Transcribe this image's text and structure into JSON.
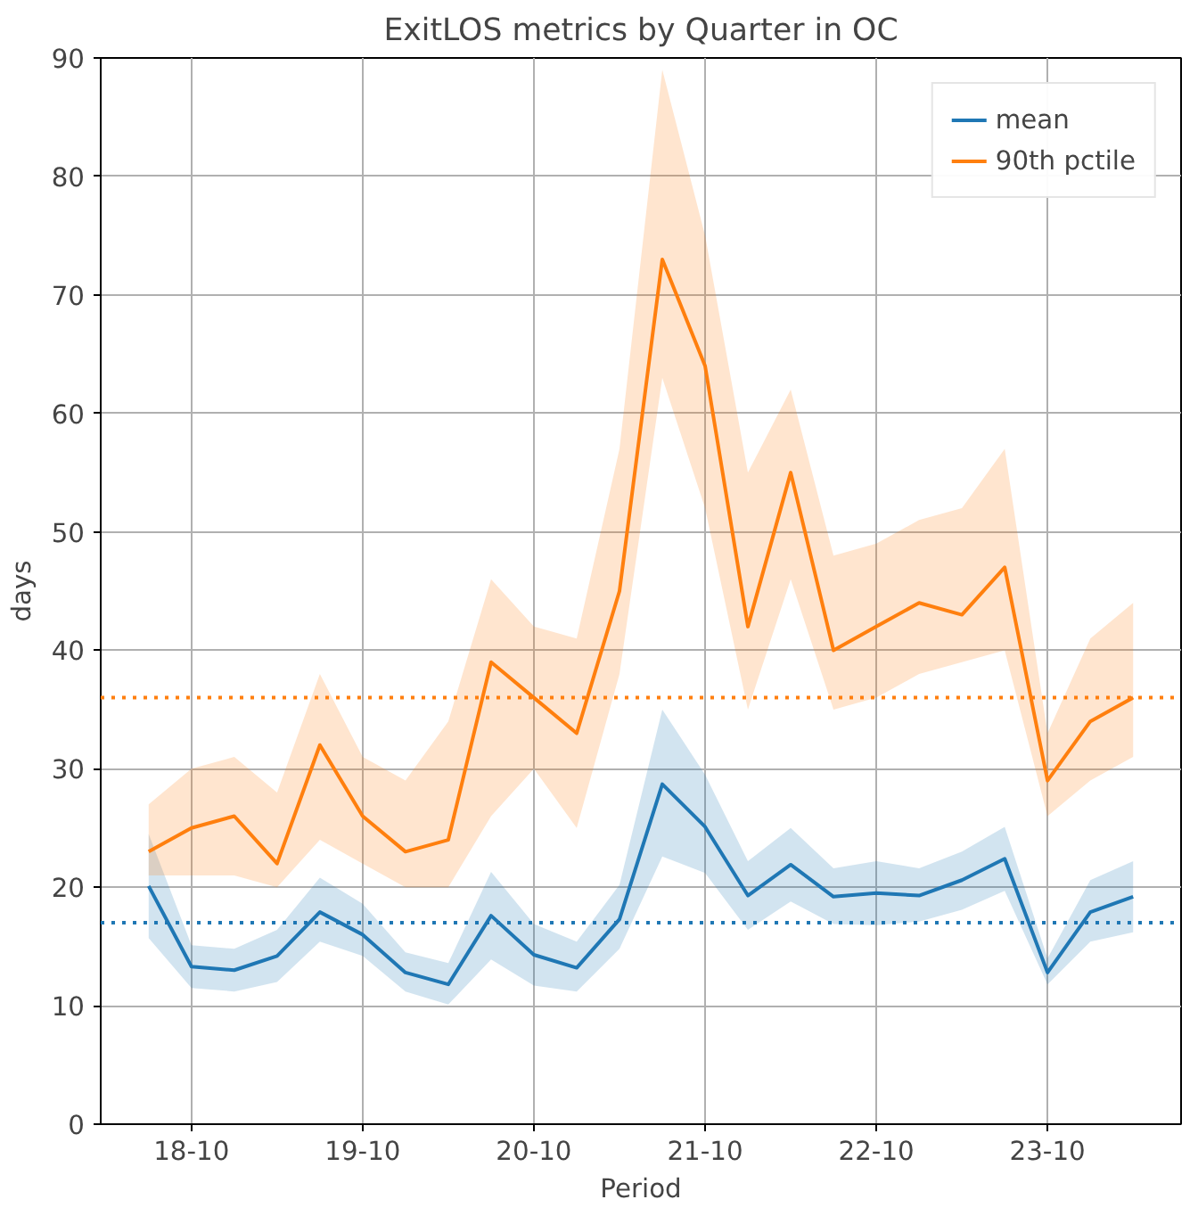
{
  "chart_data": {
    "type": "line",
    "title": "ExitLOS metrics by Quarter in OC",
    "xlabel": "Period",
    "ylabel": "days",
    "categories": [
      null,
      "18-10",
      null,
      null,
      null,
      "19-10",
      null,
      null,
      null,
      "20-10",
      null,
      null,
      null,
      "21-10",
      null,
      null,
      null,
      "22-10",
      null,
      null,
      null,
      "23-10",
      null,
      null
    ],
    "series": [
      {
        "name": "mean",
        "color": "#1f77b4",
        "values": [
          20.1,
          13.3,
          13.0,
          14.2,
          17.9,
          16.0,
          12.8,
          11.8,
          17.6,
          14.3,
          13.2,
          17.3,
          28.7,
          25.1,
          19.3,
          21.9,
          19.2,
          19.5,
          19.3,
          20.6,
          22.4,
          12.8,
          17.9,
          19.2
        ],
        "lower": [
          15.7,
          11.5,
          11.2,
          12.0,
          15.4,
          14.2,
          11.2,
          10.1,
          13.9,
          11.7,
          11.2,
          14.8,
          22.6,
          21.2,
          16.4,
          18.8,
          16.9,
          16.8,
          17.1,
          18.1,
          19.7,
          11.8,
          15.4,
          16.2
        ],
        "upper": [
          24.5,
          15.1,
          14.8,
          16.4,
          20.8,
          18.6,
          14.5,
          13.6,
          21.3,
          16.9,
          15.4,
          20.2,
          35.0,
          29.5,
          22.2,
          25.0,
          21.6,
          22.2,
          21.6,
          23.0,
          25.1,
          14.0,
          20.6,
          22.2
        ]
      },
      {
        "name": "90th pctile",
        "color": "#ff7f0e",
        "values": [
          23,
          25,
          26,
          22,
          32,
          26,
          23,
          24,
          39,
          36,
          33,
          45,
          73,
          64,
          42,
          55,
          40,
          42,
          44,
          43,
          47,
          29,
          34,
          36
        ],
        "lower": [
          21,
          21,
          21,
          20,
          24,
          22,
          20,
          20,
          26,
          30,
          25,
          38,
          63,
          52,
          35,
          46,
          35,
          36,
          38,
          39,
          40,
          26,
          29,
          31
        ],
        "upper": [
          27,
          30,
          31,
          28,
          38,
          31,
          29,
          34,
          46,
          42,
          41,
          57,
          89,
          75,
          55,
          62,
          48,
          49,
          51,
          52,
          57,
          33,
          41,
          44
        ]
      }
    ],
    "ref_lines": [
      {
        "axis": "y",
        "value": 17.0,
        "color": "#1f77b4",
        "line_style": "dotted"
      },
      {
        "axis": "y",
        "value": 36,
        "color": "#ff7f0e",
        "line_style": "dotted"
      }
    ],
    "ylim": [
      0,
      90
    ],
    "yticks": [
      0,
      10,
      20,
      30,
      40,
      50,
      60,
      70,
      80,
      90
    ],
    "grid": true,
    "legend": "top right",
    "line_style": "solid",
    "marker": "none"
  }
}
